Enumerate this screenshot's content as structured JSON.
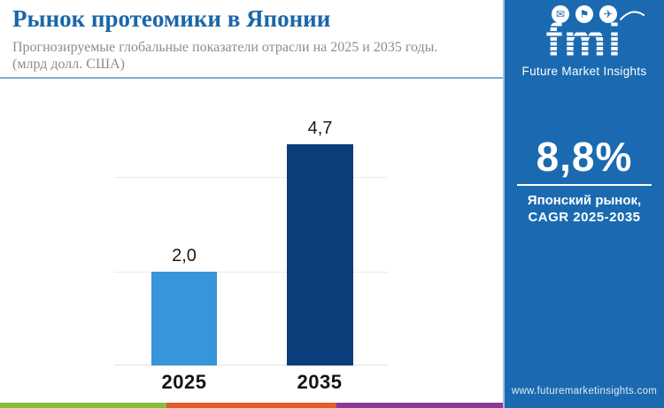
{
  "header": {
    "title": "Рынок протеомики в Японии",
    "subtitle_line1": "Прогнозируемые глобальные показатели отрасли на 2025 и 2035 годы.",
    "subtitle_line2": "(млрд долл. США)"
  },
  "chart_data": {
    "type": "bar",
    "categories": [
      "2025",
      "2035"
    ],
    "values": [
      2.0,
      4.7
    ],
    "value_labels": [
      "2,0",
      "4,7"
    ],
    "title": "Рынок протеомики в Японии",
    "subtitle": "Прогнозируемые глобальные показатели отрасли на 2025 и 2035 годы.",
    "unit": "млрд долл. США",
    "xlabel": "",
    "ylabel": "",
    "ylim": [
      0,
      5
    ],
    "gridline_values": [
      0,
      2,
      4
    ],
    "grid": "horizontal, very faint",
    "legend_position": "none",
    "bar_colors": [
      "#3795d9",
      "#0d3e7b"
    ]
  },
  "sidebar": {
    "bg_color": "#1b6ab1",
    "logo": {
      "text": "fmi",
      "tagline": "Future Market Insights",
      "icon_names": [
        "envelope-icon",
        "statue-icon",
        "globe-plane-icon"
      ],
      "icon_glyphs": [
        "✉",
        "⚑",
        "✈"
      ]
    },
    "cagr_value": "8,8%",
    "cagr_label_line1": "Японский рынок,",
    "cagr_label_line2": "CAGR 2025-2035",
    "website": "www.futuremarketinsights.com"
  },
  "footer_stripe_colors": [
    "#86bd34",
    "#e25b28",
    "#8b3b96"
  ],
  "colors": {
    "title": "#1a67a8",
    "subtitle": "#8d8d8d",
    "header_rule": "#82aed2",
    "bar_2025": "#3795d9",
    "bar_2035": "#0d3e7b",
    "sidebar_bg": "#1b6ab1",
    "label_text": "#141414"
  }
}
